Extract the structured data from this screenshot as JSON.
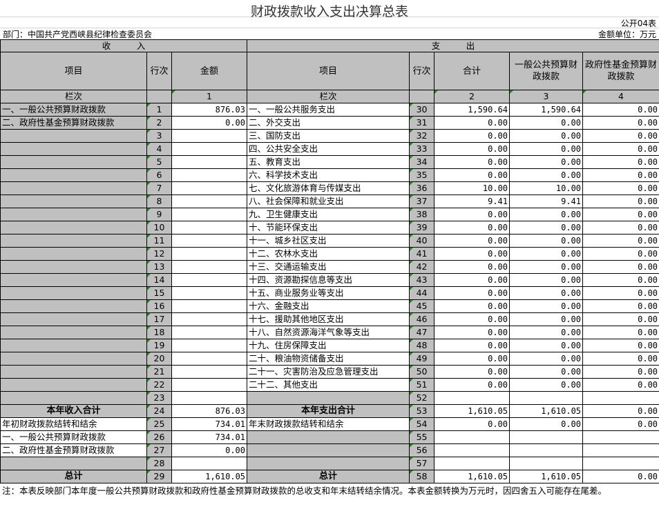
{
  "title": "财政拨款收入支出决算总表",
  "form_code": "公开04表",
  "department": "部门：中国共产党西峡县纪律检查委员会",
  "unit": "金额单位：万元",
  "income_section": "收　　　入",
  "expense_section": "支　　　出",
  "headers": {
    "item": "项目",
    "line": "行次",
    "amount": "金额",
    "item2": "项目",
    "line2": "行次",
    "total": "合计",
    "general": "一般公共预算财政拨款",
    "fund": "政府性基金预算财政拨款"
  },
  "column_no": {
    "label": "栏次",
    "amount": "1",
    "label2": "栏次",
    "total": "2",
    "general": "3",
    "fund": "4"
  },
  "rows": [
    {
      "l": "一、一般公共预算财政拨款",
      "ln": "1",
      "a": "876.03",
      "r": "一、一般公共服务支出",
      "rn": "30",
      "t": "1,590.64",
      "g": "1,590.64",
      "f": "0.00"
    },
    {
      "l": "二、政府性基金预算财政拨款",
      "ln": "2",
      "a": "0.00",
      "r": "二、外交支出",
      "rn": "31",
      "t": "0.00",
      "g": "0.00",
      "f": "0.00"
    },
    {
      "l": "",
      "ln": "3",
      "a": "",
      "r": "三、国防支出",
      "rn": "32",
      "t": "0.00",
      "g": "0.00",
      "f": "0.00"
    },
    {
      "l": "",
      "ln": "4",
      "a": "",
      "r": "四、公共安全支出",
      "rn": "33",
      "t": "0.00",
      "g": "0.00",
      "f": "0.00"
    },
    {
      "l": "",
      "ln": "5",
      "a": "",
      "r": "五、教育支出",
      "rn": "34",
      "t": "0.00",
      "g": "0.00",
      "f": "0.00"
    },
    {
      "l": "",
      "ln": "6",
      "a": "",
      "r": "六、科学技术支出",
      "rn": "35",
      "t": "0.00",
      "g": "0.00",
      "f": "0.00"
    },
    {
      "l": "",
      "ln": "7",
      "a": "",
      "r": "七、文化旅游体育与传媒支出",
      "rn": "36",
      "t": "10.00",
      "g": "10.00",
      "f": "0.00"
    },
    {
      "l": "",
      "ln": "8",
      "a": "",
      "r": "八、社会保障和就业支出",
      "rn": "37",
      "t": "9.41",
      "g": "9.41",
      "f": "0.00"
    },
    {
      "l": "",
      "ln": "9",
      "a": "",
      "r": "九、卫生健康支出",
      "rn": "38",
      "t": "0.00",
      "g": "0.00",
      "f": "0.00"
    },
    {
      "l": "",
      "ln": "10",
      "a": "",
      "r": "十、节能环保支出",
      "rn": "39",
      "t": "0.00",
      "g": "0.00",
      "f": "0.00"
    },
    {
      "l": "",
      "ln": "11",
      "a": "",
      "r": "十一、城乡社区支出",
      "rn": "40",
      "t": "0.00",
      "g": "0.00",
      "f": "0.00"
    },
    {
      "l": "",
      "ln": "12",
      "a": "",
      "r": "十二、农林水支出",
      "rn": "41",
      "t": "0.00",
      "g": "0.00",
      "f": "0.00"
    },
    {
      "l": "",
      "ln": "13",
      "a": "",
      "r": "十三、交通运输支出",
      "rn": "42",
      "t": "0.00",
      "g": "0.00",
      "f": "0.00"
    },
    {
      "l": "",
      "ln": "14",
      "a": "",
      "r": "十四、资源勘探信息等支出",
      "rn": "43",
      "t": "0.00",
      "g": "0.00",
      "f": "0.00"
    },
    {
      "l": "",
      "ln": "15",
      "a": "",
      "r": "十五、商业服务业等支出",
      "rn": "44",
      "t": "0.00",
      "g": "0.00",
      "f": "0.00"
    },
    {
      "l": "",
      "ln": "16",
      "a": "",
      "r": "十六、金融支出",
      "rn": "45",
      "t": "0.00",
      "g": "0.00",
      "f": "0.00"
    },
    {
      "l": "",
      "ln": "17",
      "a": "",
      "r": "十七、援助其他地区支出",
      "rn": "46",
      "t": "0.00",
      "g": "0.00",
      "f": "0.00"
    },
    {
      "l": "",
      "ln": "18",
      "a": "",
      "r": "十八、自然资源海洋气象等支出",
      "rn": "47",
      "t": "0.00",
      "g": "0.00",
      "f": "0.00"
    },
    {
      "l": "",
      "ln": "19",
      "a": "",
      "r": "十九、住房保障支出",
      "rn": "48",
      "t": "0.00",
      "g": "0.00",
      "f": "0.00"
    },
    {
      "l": "",
      "ln": "20",
      "a": "",
      "r": "二十、粮油物资储备支出",
      "rn": "49",
      "t": "0.00",
      "g": "0.00",
      "f": "0.00"
    },
    {
      "l": "",
      "ln": "21",
      "a": "",
      "r": "二十一、灾害防治及应急管理支出",
      "rn": "50",
      "t": "0.00",
      "g": "0.00",
      "f": "0.00"
    },
    {
      "l": "",
      "ln": "22",
      "a": "",
      "r": "二十二、其他支出",
      "rn": "51",
      "t": "0.00",
      "g": "0.00",
      "f": "0.00"
    },
    {
      "l": "",
      "ln": "23",
      "a": "",
      "r": "",
      "rn": "52",
      "t": "",
      "g": "",
      "f": ""
    },
    {
      "l": "本年收入合计",
      "ln": "24",
      "a": "876.03",
      "r": "本年支出合计",
      "rn": "53",
      "t": "1,610.05",
      "g": "1,610.05",
      "f": "0.00"
    },
    {
      "l": "年初财政拨款结转和结余",
      "ln": "25",
      "a": "734.01",
      "r": "年末财政拨款结转和结余",
      "rn": "54",
      "t": "0.00",
      "g": "0.00",
      "f": "0.00"
    },
    {
      "l": "一、一般公共预算财政拨款",
      "ln": "26",
      "a": "734.01",
      "r": "",
      "rn": "55",
      "t": "",
      "g": "",
      "f": ""
    },
    {
      "l": "二、政府性基金预算财政拨款",
      "ln": "27",
      "a": "0.00",
      "r": "",
      "rn": "56",
      "t": "",
      "g": "",
      "f": ""
    },
    {
      "l": "",
      "ln": "28",
      "a": "",
      "r": "",
      "rn": "57",
      "t": "",
      "g": "",
      "f": ""
    },
    {
      "l": "总计",
      "ln": "29",
      "a": "1,610.05",
      "r": "总计",
      "rn": "58",
      "t": "1,610.05",
      "g": "1,610.05",
      "f": "0.00"
    }
  ],
  "note": "注：本表反映部门本年度一般公共预算财政拨款和政府性基金预算财政拨款的总收支和年末结转结余情况。本表金额转换为万元时，因四舍五入可能存在尾差。",
  "colors": {
    "header_gray": "#c0c0c0",
    "indicator_green": "#1a8a1a"
  }
}
